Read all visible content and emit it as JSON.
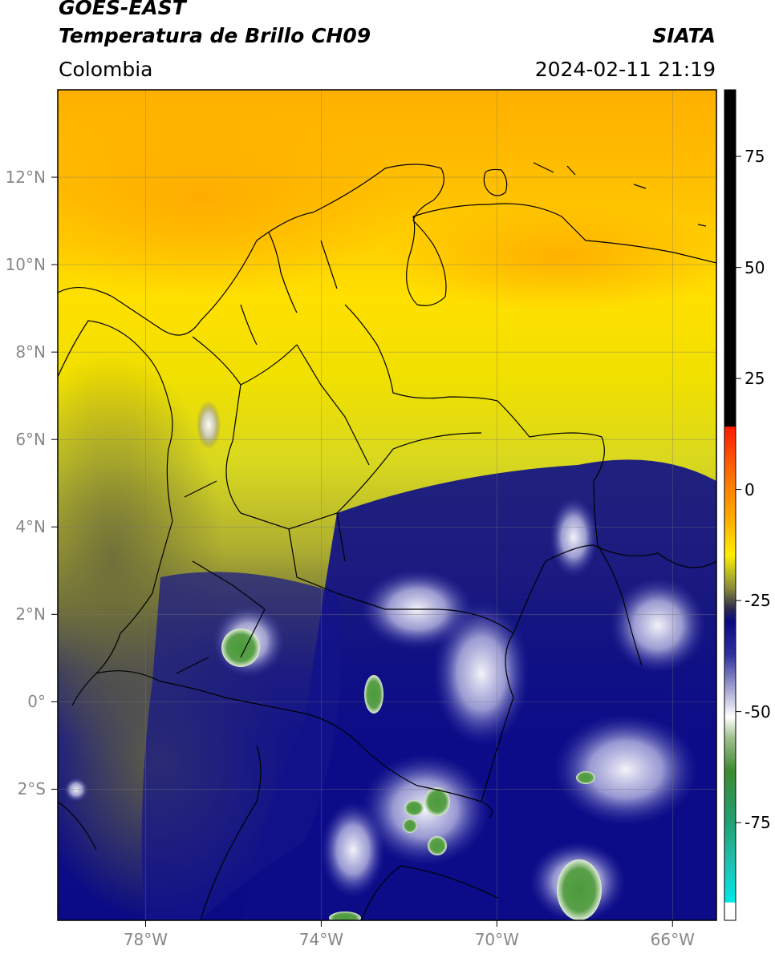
{
  "header": {
    "satellite": "GOES-EAST",
    "product": "Temperatura de Brillo CH09",
    "institution": "SIATA",
    "region": "Colombia",
    "datetime": "2024-02-11 21:19"
  },
  "map": {
    "lon_range": [
      -80,
      -65
    ],
    "lat_range": [
      -5,
      14
    ],
    "lat_ticks": [
      {
        "value": 12,
        "label": "12°N"
      },
      {
        "value": 10,
        "label": "10°N"
      },
      {
        "value": 8,
        "label": "8°N"
      },
      {
        "value": 6,
        "label": "6°N"
      },
      {
        "value": 4,
        "label": "4°N"
      },
      {
        "value": 2,
        "label": "2°N"
      },
      {
        "value": 0,
        "label": "0°"
      },
      {
        "value": -2,
        "label": "2°S"
      }
    ],
    "lon_ticks": [
      {
        "value": -78,
        "label": "78°W"
      },
      {
        "value": -74,
        "label": "74°W"
      },
      {
        "value": -70,
        "label": "70°W"
      },
      {
        "value": -66,
        "label": "66°W"
      }
    ],
    "gridlines": true
  },
  "colorbar": {
    "range": [
      -97,
      90
    ],
    "ticks": [
      {
        "value": 75,
        "label": "75"
      },
      {
        "value": 50,
        "label": "50"
      },
      {
        "value": 25,
        "label": "25"
      },
      {
        "value": 0,
        "label": "0"
      },
      {
        "value": -25,
        "label": "-25"
      },
      {
        "value": -50,
        "label": "-50"
      },
      {
        "value": -75,
        "label": "-75"
      }
    ],
    "colors": {
      "black": "#000000",
      "red": "#ff1a00",
      "orange": "#ff9a00",
      "yellow": "#ffee00",
      "olive": "#8a8a3a",
      "dark_gray": "#2a2a50",
      "navy": "#0a0a80",
      "white": "#ffffff",
      "green": "#3d8a30",
      "teal": "#20b090",
      "cyan": "#00e8e8"
    }
  }
}
